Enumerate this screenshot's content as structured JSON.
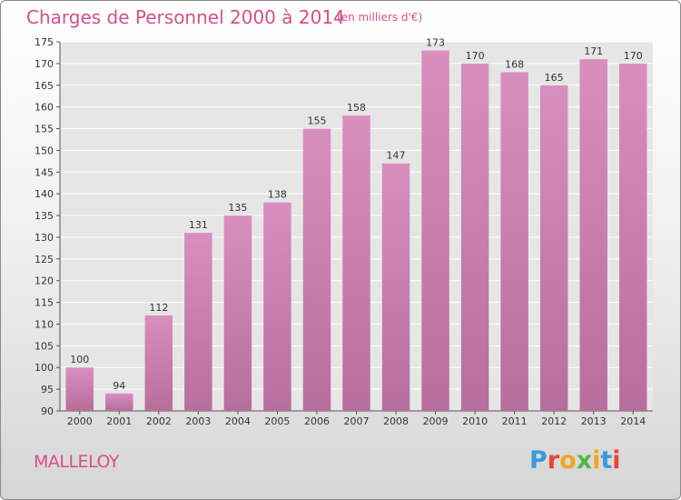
{
  "header": {
    "title": "Charges de Personnel 2000 à 2014",
    "subtitle": "(en milliers d'€)"
  },
  "footer": {
    "commune": "MALLELOY",
    "logo_text": "Proxiti",
    "logo_colors": [
      "#3a9ad9",
      "#e8423a",
      "#f3a521",
      "#4cb848",
      "#f3a521",
      "#3a9ad9",
      "#e8423a"
    ]
  },
  "colors": {
    "title": "#d74f8b",
    "bar": "#d98fbe",
    "bar_dark": "#b86e9c",
    "plot_background": "#e6e6e6",
    "grid": "#ffffff"
  },
  "chart_data": {
    "type": "bar",
    "categories": [
      "2000",
      "2001",
      "2002",
      "2003",
      "2004",
      "2005",
      "2006",
      "2007",
      "2008",
      "2009",
      "2010",
      "2011",
      "2012",
      "2013",
      "2014"
    ],
    "values": [
      100,
      94,
      112,
      131,
      135,
      138,
      155,
      158,
      147,
      173,
      170,
      168,
      165,
      171,
      170
    ],
    "ylim": [
      90,
      175
    ],
    "yticks": [
      90,
      95,
      100,
      105,
      110,
      115,
      120,
      125,
      130,
      135,
      140,
      145,
      150,
      155,
      160,
      165,
      170,
      175
    ],
    "grid": true,
    "data_labels": true
  }
}
